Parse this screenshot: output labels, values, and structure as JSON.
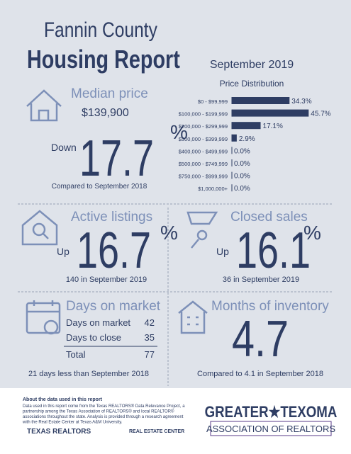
{
  "header": {
    "title_line1": "Fannin County",
    "title_line2": "Housing Report",
    "period": "September 2019"
  },
  "median_price": {
    "label": "Median price",
    "price": "$139,900",
    "direction": "Down",
    "change": 17.7,
    "unit": "%",
    "note": "Compared to September 2018"
  },
  "price_distribution": {
    "type": "bar",
    "title": "Price Distribution",
    "categories": [
      "$0 - $99,999",
      "$100,000 - $199,999",
      "$200,000 - $299,999",
      "$300,000 - $399,999",
      "$400,000 - $499,999",
      "$500,000 - $749,999",
      "$750,000 - $999,999",
      "$1,000,000+"
    ],
    "values": [
      34.3,
      45.7,
      17.1,
      2.9,
      0.0,
      0.0,
      0.0,
      0.0
    ],
    "value_labels": [
      "34.3%",
      "45.7%",
      "17.1%",
      "2.9%",
      "0.0%",
      "0.0%",
      "0.0%",
      "0.0%"
    ],
    "color": "#2e3d63"
  },
  "active_listings": {
    "label": "Active listings",
    "direction": "Up",
    "change": 16.7,
    "unit": "%",
    "note": "140 in September 2019"
  },
  "closed_sales": {
    "label": "Closed sales",
    "direction": "Up",
    "change": 16.1,
    "unit": "%",
    "note": "36 in September 2019"
  },
  "days_on_market": {
    "label": "Days on market",
    "rows": [
      [
        "Days on market",
        42
      ],
      [
        "Days to close",
        35
      ],
      [
        "Total",
        77
      ]
    ],
    "note": "21 days less than September 2018"
  },
  "months_inventory": {
    "label": "Months of inventory",
    "value": 4.7,
    "note": "Compared to 4.1 in September 2018"
  },
  "footer": {
    "about_title": "About the data used in this report",
    "about_text": [
      "Data used in this report come from the Texas REALTORS® Data Relevance Project, a",
      "partnership among the Texas Association of REALTORS® and local REALTOR®",
      "associations throughout the state. Analysis is provided through a research agreement",
      "with the Real Estate Center at Texas A&M University."
    ],
    "logo_texas_realtors": "TEXAS REALTORS",
    "logo_rec": "REAL ESTATE CENTER",
    "assoc_line1": "GREATER★TEXOMA",
    "assoc_line2": "ASSOCIATION OF REALTORS"
  }
}
